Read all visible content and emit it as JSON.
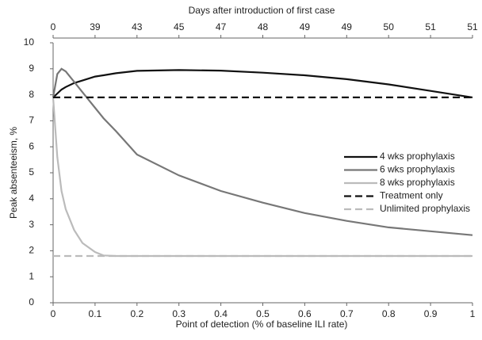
{
  "chart_data": {
    "type": "line",
    "x_label": "Point of detection (% of baseline ILI rate)",
    "y_label": "Peak absenteeism, %",
    "x2_label": "Days after introduction of first case",
    "x": [
      0,
      0.01,
      0.02,
      0.03,
      0.05,
      0.07,
      0.1,
      0.12,
      0.15,
      0.2,
      0.3,
      0.4,
      0.5,
      0.6,
      0.7,
      0.8,
      0.9,
      1
    ],
    "series": [
      {
        "name": "4 wks prophylaxis",
        "color": "#111111",
        "linestyle": "solid",
        "values": [
          7.9,
          8.05,
          8.2,
          8.3,
          8.45,
          8.55,
          8.7,
          8.75,
          8.83,
          8.92,
          8.95,
          8.93,
          8.85,
          8.75,
          8.6,
          8.4,
          8.15,
          7.9
        ]
      },
      {
        "name": "6 wks prophylaxis",
        "color": "#777777",
        "linestyle": "solid",
        "values": [
          7.9,
          8.8,
          9.0,
          8.9,
          8.5,
          8.1,
          7.5,
          7.1,
          6.6,
          5.7,
          4.9,
          4.3,
          3.85,
          3.45,
          3.15,
          2.9,
          2.75,
          2.6
        ]
      },
      {
        "name": "8 wks prophylaxis",
        "color": "#bbbbbb",
        "linestyle": "solid",
        "values": [
          7.9,
          5.6,
          4.3,
          3.6,
          2.8,
          2.3,
          1.95,
          1.82,
          1.8,
          1.8,
          1.8,
          1.8,
          1.8,
          1.8,
          1.8,
          1.8,
          1.8,
          1.8
        ]
      },
      {
        "name": "Treatment only",
        "color": "#111111",
        "linestyle": "dashed",
        "values": [
          7.9,
          7.9,
          7.9,
          7.9,
          7.9,
          7.9,
          7.9,
          7.9,
          7.9,
          7.9,
          7.9,
          7.9,
          7.9,
          7.9,
          7.9,
          7.9,
          7.9,
          7.9
        ]
      },
      {
        "name": "Unlimited prophylaxis",
        "color": "#bbbbbb",
        "linestyle": "dashed",
        "values": [
          1.8,
          1.8,
          1.8,
          1.8,
          1.8,
          1.8,
          1.8,
          1.8,
          1.8,
          1.8,
          1.8,
          1.8,
          1.8,
          1.8,
          1.8,
          1.8,
          1.8,
          1.8
        ]
      }
    ],
    "xlim": [
      0,
      1
    ],
    "xticks": [
      0,
      0.1,
      0.2,
      0.3,
      0.4,
      0.5,
      0.6,
      0.7,
      0.8,
      0.9,
      1
    ],
    "x2ticks": [
      {
        "value": 0,
        "label": "0"
      },
      {
        "value": 0.1,
        "label": "39"
      },
      {
        "value": 0.2,
        "label": "43"
      },
      {
        "value": 0.3,
        "label": "45"
      },
      {
        "value": 0.4,
        "label": "47"
      },
      {
        "value": 0.5,
        "label": "48"
      },
      {
        "value": 0.6,
        "label": "49"
      },
      {
        "value": 0.7,
        "label": "49"
      },
      {
        "value": 0.8,
        "label": "50"
      },
      {
        "value": 0.9,
        "label": "51"
      },
      {
        "value": 1,
        "label": "51"
      }
    ],
    "ylim": [
      0,
      10
    ],
    "yticks": [
      0,
      1,
      2,
      3,
      4,
      5,
      6,
      7,
      8,
      9,
      10
    ],
    "grid": false
  }
}
